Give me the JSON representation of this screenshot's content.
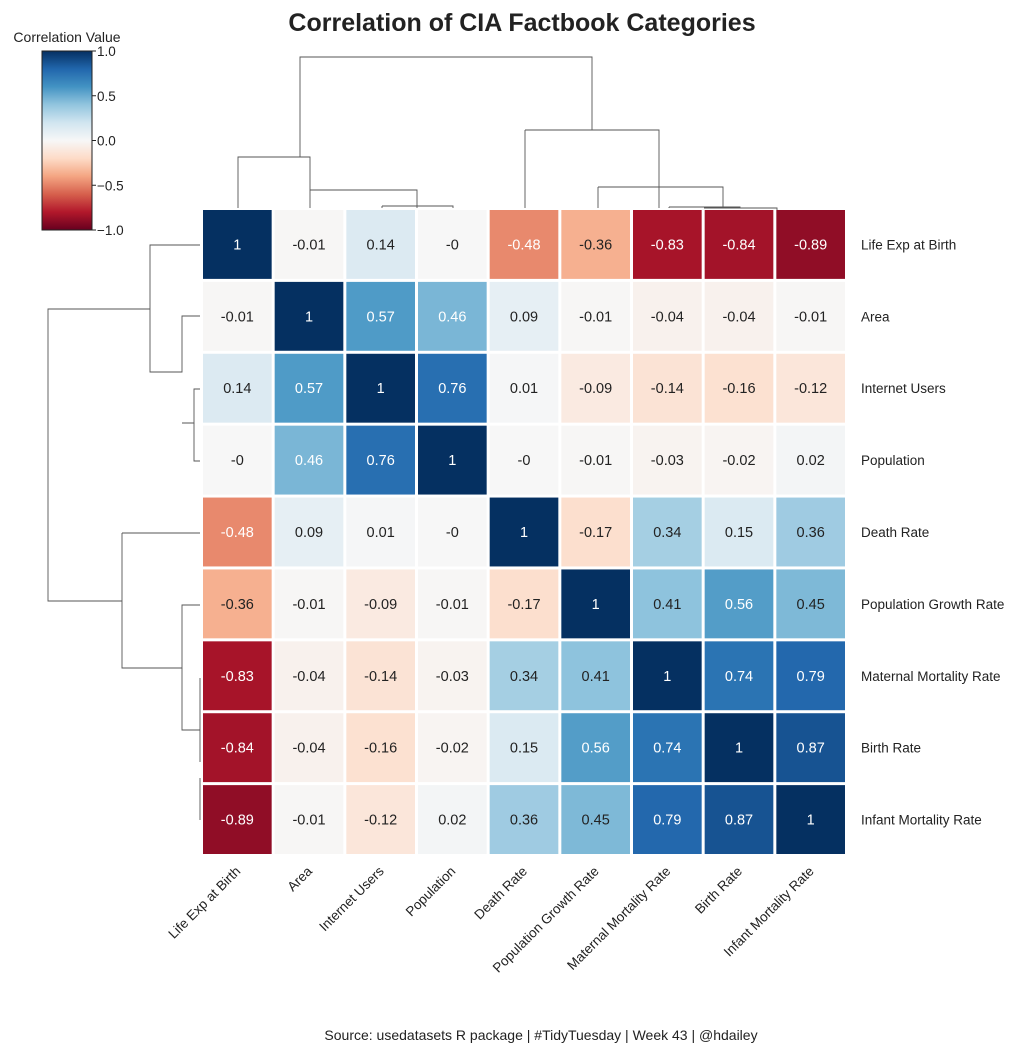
{
  "chart_data": {
    "type": "heatmap",
    "title": "Correlation of CIA Factbook Categories",
    "source": "Source: usedatasets R package | #TidyTuesday | Week 43 | @hdailey",
    "colorbar": {
      "title": "Correlation Value",
      "ticks": [
        "1.0",
        "0.5",
        "0.0",
        "−0.5",
        "−1.0"
      ],
      "range": [
        -1,
        1
      ],
      "colormap": "RdBu"
    },
    "row_labels": [
      "Life Exp at Birth",
      "Area",
      "Internet Users",
      "Population",
      "Death Rate",
      "Population Growth Rate",
      "Maternal Mortality Rate",
      "Birth Rate",
      "Infant Mortality Rate"
    ],
    "col_labels": [
      "Life Exp at Birth",
      "Area",
      "Internet Users",
      "Population",
      "Death Rate",
      "Population Growth Rate",
      "Maternal Mortality Rate",
      "Birth Rate",
      "Infant Mortality Rate"
    ],
    "values": [
      [
        1,
        -0.01,
        0.14,
        0,
        -0.48,
        -0.36,
        -0.83,
        -0.84,
        -0.89
      ],
      [
        -0.01,
        1,
        0.57,
        0.46,
        0.09,
        -0.01,
        -0.04,
        -0.04,
        -0.01
      ],
      [
        0.14,
        0.57,
        1,
        0.76,
        0.01,
        -0.09,
        -0.14,
        -0.16,
        -0.12
      ],
      [
        0,
        0.46,
        0.76,
        1,
        0,
        -0.01,
        -0.03,
        -0.02,
        0.02
      ],
      [
        -0.48,
        0.09,
        0.01,
        0,
        1,
        -0.17,
        0.34,
        0.15,
        0.36
      ],
      [
        -0.36,
        -0.01,
        -0.09,
        -0.01,
        -0.17,
        1,
        0.41,
        0.56,
        0.45
      ],
      [
        -0.83,
        -0.04,
        -0.14,
        -0.03,
        0.34,
        0.41,
        1,
        0.74,
        0.79
      ],
      [
        -0.84,
        -0.04,
        -0.16,
        -0.02,
        0.15,
        0.56,
        0.74,
        1,
        0.87
      ],
      [
        -0.89,
        -0.01,
        -0.12,
        0.02,
        0.36,
        0.45,
        0.79,
        0.87,
        1
      ]
    ],
    "cell_labels": [
      [
        "1",
        "-0.01",
        "0.14",
        "-0",
        "-0.48",
        "-0.36",
        "-0.83",
        "-0.84",
        "-0.89"
      ],
      [
        "-0.01",
        "1",
        "0.57",
        "0.46",
        "0.09",
        "-0.01",
        "-0.04",
        "-0.04",
        "-0.01"
      ],
      [
        "0.14",
        "0.57",
        "1",
        "0.76",
        "0.01",
        "-0.09",
        "-0.14",
        "-0.16",
        "-0.12"
      ],
      [
        "-0",
        "0.46",
        "0.76",
        "1",
        "-0",
        "-0.01",
        "-0.03",
        "-0.02",
        "0.02"
      ],
      [
        "-0.48",
        "0.09",
        "0.01",
        "-0",
        "1",
        "-0.17",
        "0.34",
        "0.15",
        "0.36"
      ],
      [
        "-0.36",
        "-0.01",
        "-0.09",
        "-0.01",
        "-0.17",
        "1",
        "0.41",
        "0.56",
        "0.45"
      ],
      [
        "-0.83",
        "-0.04",
        "-0.14",
        "-0.03",
        "0.34",
        "0.41",
        "1",
        "0.74",
        "0.79"
      ],
      [
        "-0.84",
        "-0.04",
        "-0.16",
        "-0.02",
        "0.15",
        "0.56",
        "0.74",
        "1",
        "0.87"
      ],
      [
        "-0.89",
        "-0.01",
        "-0.12",
        "0.02",
        "0.36",
        "0.45",
        "0.79",
        "0.87",
        "1"
      ]
    ],
    "dendrogram": "hierarchical clustering on rows and columns"
  }
}
